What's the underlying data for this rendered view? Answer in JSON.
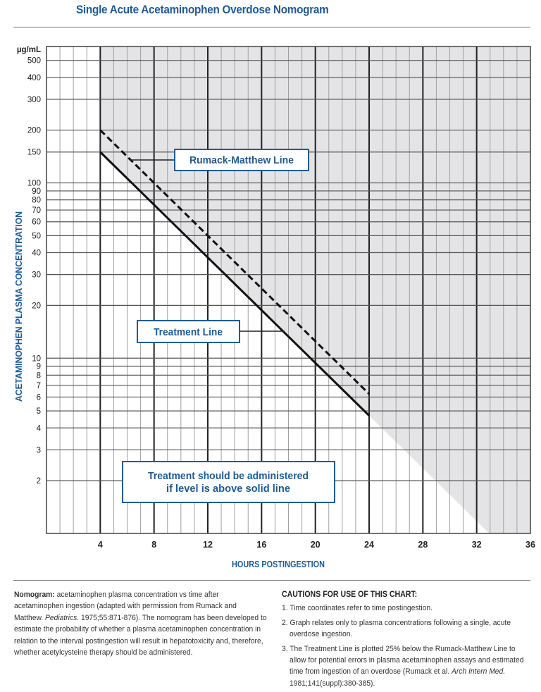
{
  "title": "Single Acute Acetaminophen Overdose Nomogram",
  "colors": {
    "accent": "#1f5a94",
    "shade": "#e4e4e6",
    "grid_minor": "#a0a0a0",
    "grid_major": "#222222"
  },
  "chart_data": {
    "type": "line",
    "xlabel": "HOURS POSTINGESTION",
    "ylabel": "ACETAMINOPHEN PLASMA CONCENTRATION",
    "yunit": "µg/mL",
    "xlim": [
      0,
      36
    ],
    "ylim": [
      1,
      600
    ],
    "yscale": "log",
    "grid": true,
    "x_ticks": [
      4,
      8,
      12,
      16,
      20,
      24,
      28,
      32,
      36
    ],
    "y_ticks": [
      2,
      3,
      4,
      5,
      6,
      7,
      8,
      9,
      10,
      20,
      30,
      40,
      50,
      60,
      70,
      80,
      90,
      100,
      150,
      200,
      300,
      400,
      500
    ],
    "series": [
      {
        "name": "Rumack-Matthew Line",
        "style": "dashed",
        "x": [
          4,
          24
        ],
        "y": [
          200,
          6.25
        ]
      },
      {
        "name": "Treatment Line",
        "style": "solid",
        "x": [
          4,
          24
        ],
        "y": [
          150,
          4.7
        ]
      }
    ],
    "shaded_region": "above Treatment Line from 4 h onward, extended to 1 µg/mL at about 33 h",
    "annotations": {
      "rumack": "Rumack-Matthew Line",
      "treatment": "Treatment Line",
      "note_line1": "Treatment should be administered",
      "note_line2": "if level is above solid line"
    }
  },
  "footer": {
    "left_bold": "Nomogram:",
    "left_part1": " acetaminophen plasma concentration vs time after acetaminophen ingestion (adapted with permission from Rumack and Matthew. ",
    "left_italic": "Pediatrics.",
    "left_part2": " 1975;55:871-876). The nomogram has been developed to estimate the probability of whether a plasma acetaminophen concentration in relation to the interval postingestion will result in hepatotoxicity and, therefore, whether acetylcysteine therapy should be administered.",
    "cautions_title": "CAUTIONS FOR USE OF THIS CHART:",
    "caution1": "1. Time coordinates refer to time postingestion.",
    "caution2": "2. Graph relates only to plasma concentrations following a single, acute overdose ingestion.",
    "caution3_a": "3. The Treatment Line is plotted 25% below the Rumack-Matthew Line to allow for potential errors in plasma acetaminophen assays and estimated time from ingestion of an overdose (Rumack et al. ",
    "caution3_italic": "Arch Intern Med.",
    "caution3_b": " 1981;141(suppl):380-385)."
  }
}
